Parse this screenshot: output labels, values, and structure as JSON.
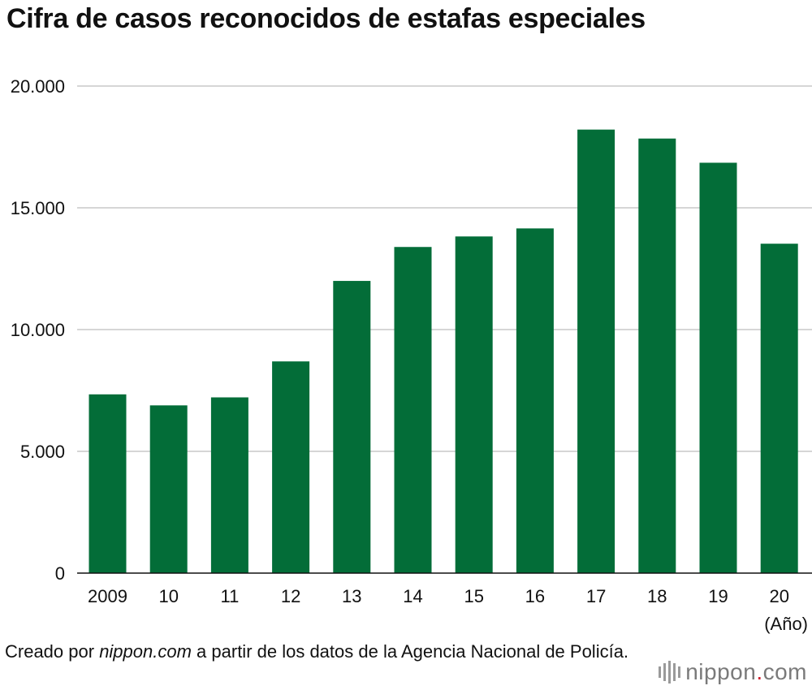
{
  "header": {
    "title": "Cifra de casos reconocidos de estafas especiales"
  },
  "chart_data": {
    "type": "bar",
    "title": "Cifra de casos reconocidos de estafas especiales",
    "xlabel": "(Año)",
    "ylabel": "",
    "categories": [
      "2009",
      "10",
      "11",
      "12",
      "13",
      "14",
      "15",
      "16",
      "17",
      "18",
      "19",
      "20"
    ],
    "values": [
      7340,
      6888,
      7216,
      8693,
      11998,
      13392,
      13824,
      14154,
      18212,
      17844,
      16851,
      13526
    ],
    "ylim": [
      0,
      20000
    ],
    "yticks": [
      0,
      5000,
      10000,
      15000,
      20000
    ],
    "ytick_labels": [
      "0",
      "5.000",
      "10.000",
      "15.000",
      "20.000"
    ],
    "grid": true,
    "bar_color": "#036d38"
  },
  "footer": {
    "source_prefix": "Creado por ",
    "source_name": "nippon.com",
    "source_suffix": " a partir de los datos de la Agencia Nacional de Policía.",
    "brand_name": "nippon",
    "brand_dot": ".",
    "brand_tld": "com"
  }
}
